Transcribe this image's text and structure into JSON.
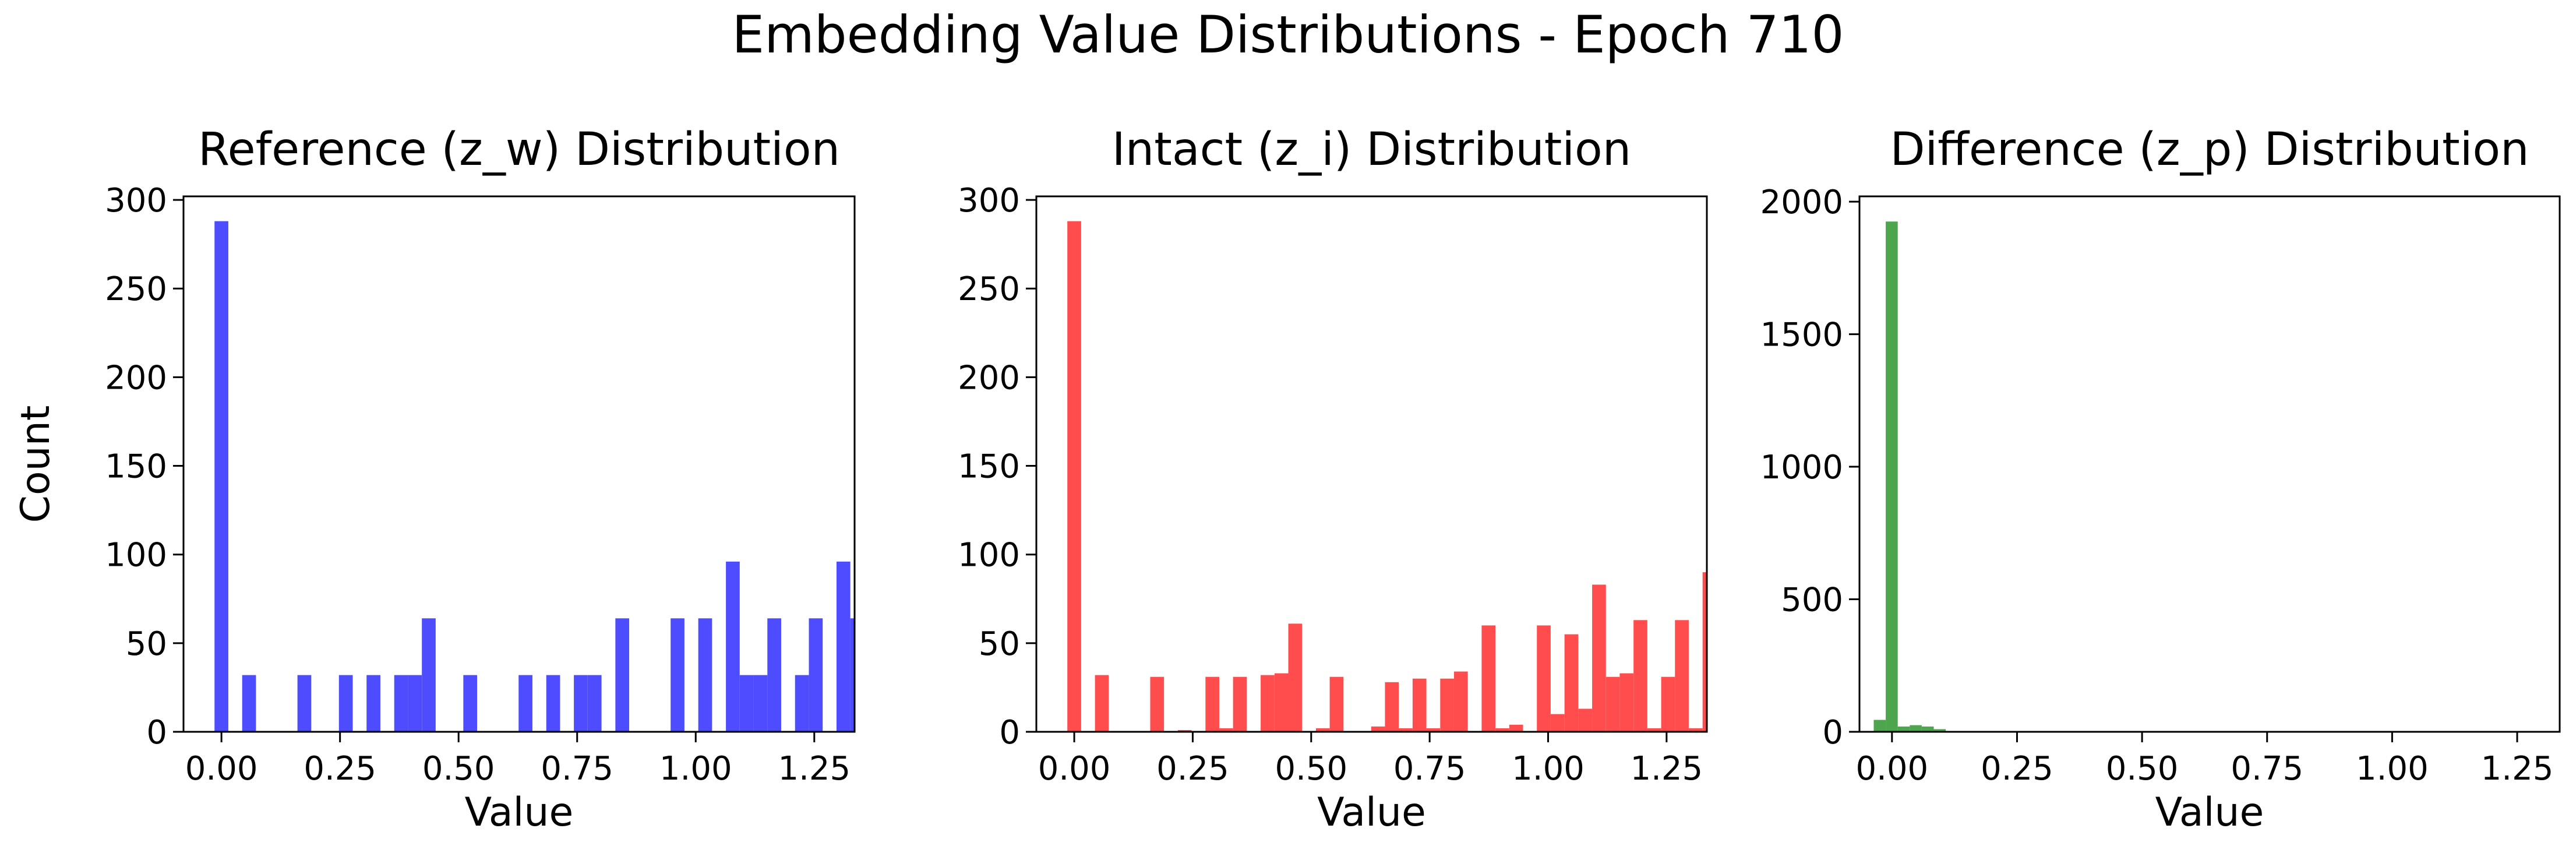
{
  "suptitle": "Embedding Value Distributions - Epoch 710",
  "chart_data": [
    {
      "type": "bar",
      "title": "Reference (z_w) Distribution",
      "xlabel": "Value",
      "ylabel": "Count",
      "color": "#4d4dff",
      "xlim": [
        -0.08,
        1.335
      ],
      "ylim": [
        0,
        302
      ],
      "xticks": [
        "0.00",
        "0.25",
        "0.50",
        "0.75",
        "1.00",
        "1.25"
      ],
      "yticks": [
        "0",
        "50",
        "100",
        "150",
        "200",
        "250",
        "300"
      ],
      "bin_width": 0.0291,
      "bin_starts": [
        -0.0146,
        0.0146,
        0.0437,
        0.0729,
        0.102,
        0.1311,
        0.1603,
        0.1894,
        0.2186,
        0.2477,
        0.2769,
        0.306,
        0.3351,
        0.3643,
        0.3934,
        0.4226,
        0.4517,
        0.4809,
        0.51,
        0.5391,
        0.5683,
        0.5974,
        0.6266,
        0.6557,
        0.6849,
        0.714,
        0.7431,
        0.7723,
        0.8014,
        0.8306,
        0.8597,
        0.8889,
        0.918,
        0.9471,
        0.9763,
        1.0054,
        1.0346,
        1.0637,
        1.0929,
        1.122,
        1.1511,
        1.1803,
        1.2094,
        1.2386,
        1.2677,
        1.2969,
        1.326
      ],
      "values": [
        288,
        0,
        32,
        0,
        0,
        0,
        32,
        0,
        0,
        32,
        0,
        32,
        0,
        32,
        32,
        64,
        0,
        0,
        32,
        0,
        0,
        0,
        32,
        0,
        32,
        0,
        32,
        32,
        0,
        64,
        0,
        0,
        0,
        64,
        0,
        64,
        0,
        96,
        32,
        32,
        64,
        0,
        32,
        64,
        0,
        96,
        64
      ]
    },
    {
      "type": "bar",
      "title": "Intact (z_i) Distribution",
      "xlabel": "Value",
      "ylabel": "",
      "color": "#ff4d4d",
      "xlim": [
        -0.08,
        1.335
      ],
      "ylim": [
        0,
        302
      ],
      "xticks": [
        "0.00",
        "0.25",
        "0.50",
        "0.75",
        "1.00",
        "1.25"
      ],
      "yticks": [
        "0",
        "50",
        "100",
        "150",
        "200",
        "250",
        "300"
      ],
      "bin_width": 0.0291,
      "bin_starts": [
        -0.0146,
        0.0146,
        0.0437,
        0.0729,
        0.102,
        0.1311,
        0.1603,
        0.1894,
        0.2186,
        0.2477,
        0.2769,
        0.306,
        0.3351,
        0.3643,
        0.3934,
        0.4226,
        0.4517,
        0.4809,
        0.51,
        0.5391,
        0.5683,
        0.5974,
        0.6266,
        0.6557,
        0.6849,
        0.714,
        0.7431,
        0.7723,
        0.8014,
        0.8306,
        0.8597,
        0.8889,
        0.918,
        0.9471,
        0.9763,
        1.0054,
        1.0346,
        1.0637,
        1.0929,
        1.122,
        1.1511,
        1.1803,
        1.2094,
        1.2386,
        1.2677,
        1.2969,
        1.326
      ],
      "values": [
        288,
        0,
        32,
        0,
        0,
        0,
        31,
        0,
        1,
        0,
        31,
        2,
        31,
        0,
        32,
        33,
        61,
        0,
        2,
        31,
        0,
        0,
        3,
        28,
        2,
        30,
        2,
        30,
        34,
        0,
        60,
        2,
        4,
        0,
        60,
        10,
        55,
        13,
        83,
        31,
        33,
        63,
        2,
        31,
        63,
        2,
        90
      ]
    },
    {
      "type": "bar",
      "title": "Difference (z_p) Distribution",
      "xlabel": "Value",
      "ylabel": "",
      "color": "#4da64d",
      "xlim": [
        -0.065,
        1.335
      ],
      "ylim": [
        0,
        2020
      ],
      "xticks": [
        "0.00",
        "0.25",
        "0.50",
        "0.75",
        "1.00",
        "1.25"
      ],
      "yticks": [
        "0",
        "500",
        "1000",
        "1500",
        "2000"
      ],
      "bin_width": 0.024,
      "bin_starts": [
        -0.0365,
        -0.0125,
        0.0115,
        0.0355,
        0.0595,
        0.0835
      ],
      "values": [
        45,
        1925,
        20,
        25,
        20,
        10
      ]
    }
  ]
}
